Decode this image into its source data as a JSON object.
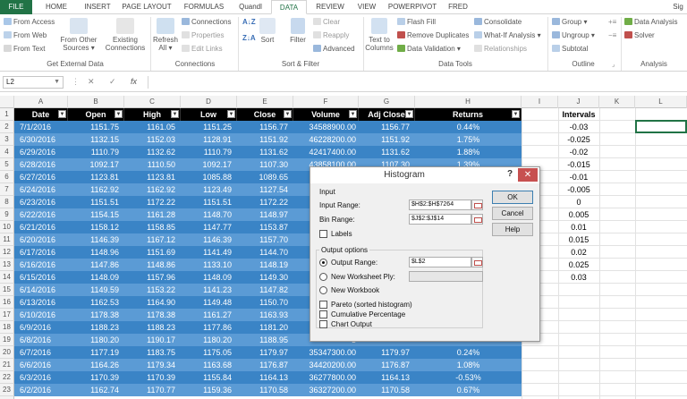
{
  "tabs": [
    "FILE",
    "HOME",
    "INSERT",
    "PAGE LAYOUT",
    "FORMULAS",
    "Quandl",
    "DATA",
    "REVIEW",
    "VIEW",
    "POWERPIVOT",
    "FRED",
    "Sig"
  ],
  "active_tab": "DATA",
  "ribbon": {
    "external": {
      "from_access": "From Access",
      "from_web": "From Web",
      "from_text": "From Text",
      "from_other": "From Other\nSources ▾",
      "existing": "Existing\nConnections",
      "label": "Get External Data"
    },
    "connections": {
      "refresh": "Refresh\nAll ▾",
      "connections": "Connections",
      "properties": "Properties",
      "edit_links": "Edit Links",
      "label": "Connections"
    },
    "sort_filter": {
      "sort": "Sort",
      "filter": "Filter",
      "clear": "Clear",
      "reapply": "Reapply",
      "advanced": "Advanced",
      "label": "Sort & Filter"
    },
    "data_tools": {
      "text_to_columns": "Text to\nColumns",
      "flash_fill": "Flash Fill",
      "remove_duplicates": "Remove Duplicates",
      "data_validation": "Data Validation ▾",
      "consolidate": "Consolidate",
      "what_if": "What-If Analysis ▾",
      "relationships": "Relationships",
      "label": "Data Tools"
    },
    "outline": {
      "group": "Group ▾",
      "ungroup": "Ungroup ▾",
      "subtotal": "Subtotal",
      "label": "Outline"
    },
    "analysis": {
      "data_analysis": "Data Analysis",
      "solver": "Solver",
      "label": "Analysis"
    }
  },
  "formula_bar": {
    "name_box": "L2",
    "formula": "",
    "cancel": "✕",
    "enter": "✓",
    "fx": "fx"
  },
  "columns": [
    "A",
    "B",
    "C",
    "D",
    "E",
    "F",
    "G",
    "H",
    "I",
    "J",
    "K",
    "L"
  ],
  "table_headers": [
    "Date",
    "Open",
    "High",
    "Low",
    "Close",
    "Volume",
    "Adj Close",
    "Returns"
  ],
  "rows": [
    [
      "7/1/2016",
      "1151.75",
      "1161.05",
      "1151.25",
      "1156.77",
      "34588900.00",
      "1156.77",
      "0.44%"
    ],
    [
      "6/30/2016",
      "1132.15",
      "1152.03",
      "1128.91",
      "1151.92",
      "46228200.00",
      "1151.92",
      "1.75%"
    ],
    [
      "6/29/2016",
      "1110.79",
      "1132.62",
      "1110.79",
      "1131.62",
      "42417400.00",
      "1131.62",
      "1.88%"
    ],
    [
      "6/28/2016",
      "1092.17",
      "1110.50",
      "1092.17",
      "1107.30",
      "43858100.00",
      "1107.30",
      "1.39%"
    ],
    [
      "6/27/2016",
      "1123.81",
      "1123.81",
      "1085.88",
      "1089.65",
      "5",
      "",
      ""
    ],
    [
      "6/24/2016",
      "1162.92",
      "1162.92",
      "1123.49",
      "1127.54",
      "7",
      "",
      ""
    ],
    [
      "6/23/2016",
      "1151.51",
      "1172.22",
      "1151.51",
      "1172.22",
      "3",
      "",
      ""
    ],
    [
      "6/22/2016",
      "1154.15",
      "1161.28",
      "1148.70",
      "1148.97",
      "3",
      "",
      ""
    ],
    [
      "6/21/2016",
      "1158.12",
      "1158.85",
      "1147.77",
      "1153.87",
      "3",
      "",
      ""
    ],
    [
      "6/20/2016",
      "1146.39",
      "1167.12",
      "1146.39",
      "1157.70",
      "3",
      "",
      ""
    ],
    [
      "6/17/2016",
      "1148.96",
      "1151.69",
      "1141.49",
      "1144.70",
      "4",
      "",
      ""
    ],
    [
      "6/16/2016",
      "1147.86",
      "1148.86",
      "1133.10",
      "1148.19",
      "3",
      "",
      ""
    ],
    [
      "6/15/2016",
      "1148.09",
      "1157.96",
      "1148.09",
      "1149.30",
      "3",
      "",
      ""
    ],
    [
      "6/14/2016",
      "1149.59",
      "1153.22",
      "1141.23",
      "1147.82",
      "3",
      "",
      ""
    ],
    [
      "6/13/2016",
      "1162.53",
      "1164.90",
      "1149.48",
      "1150.70",
      "3",
      "",
      ""
    ],
    [
      "6/10/2016",
      "1178.38",
      "1178.38",
      "1161.27",
      "1163.93",
      "3",
      "",
      ""
    ],
    [
      "6/9/2016",
      "1188.23",
      "1188.23",
      "1177.86",
      "1181.20",
      "3",
      "",
      ""
    ],
    [
      "6/8/2016",
      "1180.20",
      "1190.17",
      "1180.20",
      "1188.95",
      "3",
      "",
      ""
    ],
    [
      "6/7/2016",
      "1177.19",
      "1183.75",
      "1175.05",
      "1179.97",
      "35347300.00",
      "1179.97",
      "0.24%"
    ],
    [
      "6/6/2016",
      "1164.26",
      "1179.34",
      "1163.68",
      "1176.87",
      "34420200.00",
      "1176.87",
      "1.08%"
    ],
    [
      "6/3/2016",
      "1170.39",
      "1170.39",
      "1155.84",
      "1164.13",
      "36277800.00",
      "1164.13",
      "-0.53%"
    ],
    [
      "6/2/2016",
      "1162.74",
      "1170.77",
      "1159.36",
      "1170.58",
      "36327200.00",
      "1170.58",
      "0.67%"
    ]
  ],
  "row_numbers": [
    "1",
    "2",
    "3",
    "4",
    "5",
    "6",
    "7",
    "8",
    "9",
    "10",
    "11",
    "12",
    "13",
    "14",
    "15",
    "16",
    "17",
    "18",
    "19",
    "20",
    "21",
    "22",
    "23",
    "24"
  ],
  "intervals_header": "Intervals",
  "intervals": [
    "-0.03",
    "-0.025",
    "-0.02",
    "-0.015",
    "-0.01",
    "-0.005",
    "0",
    "0.005",
    "0.01",
    "0.015",
    "0.02",
    "0.025",
    "0.03"
  ],
  "dialog": {
    "title": "Histogram",
    "help_glyph": "?",
    "close_glyph": "✕",
    "input_group": "Input",
    "input_range_label": "Input Range:",
    "input_range_value": "$H$2:$H$7264",
    "bin_range_label": "Bin Range:",
    "bin_range_value": "$J$2:$J$14",
    "labels": "Labels",
    "output_group": "Output options",
    "output_range_label": "Output Range:",
    "output_range_value": "$L$2",
    "new_ply": "New Worksheet Ply:",
    "new_workbook": "New Workbook",
    "pareto": "Pareto (sorted histogram)",
    "cumulative": "Cumulative Percentage",
    "chart_output": "Chart Output",
    "ok": "OK",
    "cancel": "Cancel",
    "help": "Help"
  },
  "colors": {
    "excel_green": "#217346",
    "band_dark": "#3a84c6",
    "band_light": "#5b9bd5",
    "header_black": "#000000"
  }
}
